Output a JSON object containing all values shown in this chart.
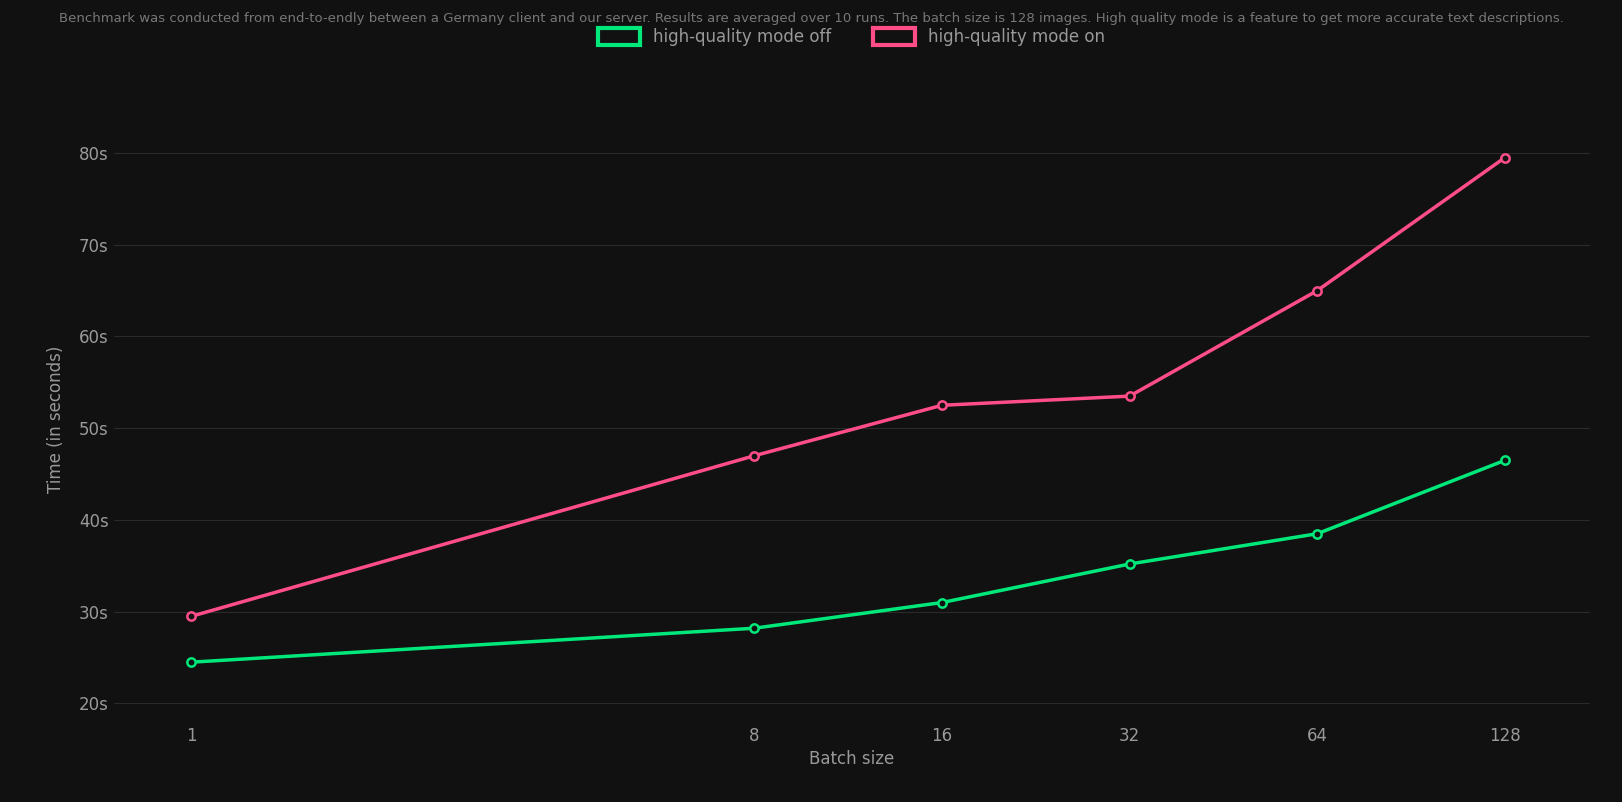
{
  "subtitle": "Benchmark was conducted from end-to-endly between a Germany client and our server. Results are averaged over 10 runs. The batch size is 128 images. High quality mode is a feature to get more accurate text descriptions.",
  "xlabel": "Batch size",
  "ylabel": "Time (in seconds)",
  "background_color": "#111111",
  "text_color": "#999999",
  "grid_color": "#2a2a2a",
  "x_values": [
    1,
    8,
    16,
    32,
    64,
    128
  ],
  "hq_off_values": [
    24.5,
    28.2,
    31.0,
    35.2,
    38.5,
    46.5
  ],
  "hq_on_values": [
    29.5,
    47.0,
    52.5,
    53.5,
    65.0,
    79.5
  ],
  "hq_off_color": "#00e87a",
  "hq_on_color": "#ff4d88",
  "hq_off_label": "high-quality mode off",
  "hq_on_label": "high-quality mode on",
  "ylim": [
    18,
    84
  ],
  "yticks": [
    20,
    30,
    40,
    50,
    60,
    70,
    80
  ],
  "ytick_labels": [
    "20s",
    "30s",
    "40s",
    "50s",
    "60s",
    "70s",
    "80s"
  ],
  "line_width": 2.5,
  "marker_size": 6,
  "subtitle_color": "#777777",
  "subtitle_fontsize": 9.5,
  "axis_label_fontsize": 12,
  "tick_fontsize": 12,
  "legend_fontsize": 12
}
